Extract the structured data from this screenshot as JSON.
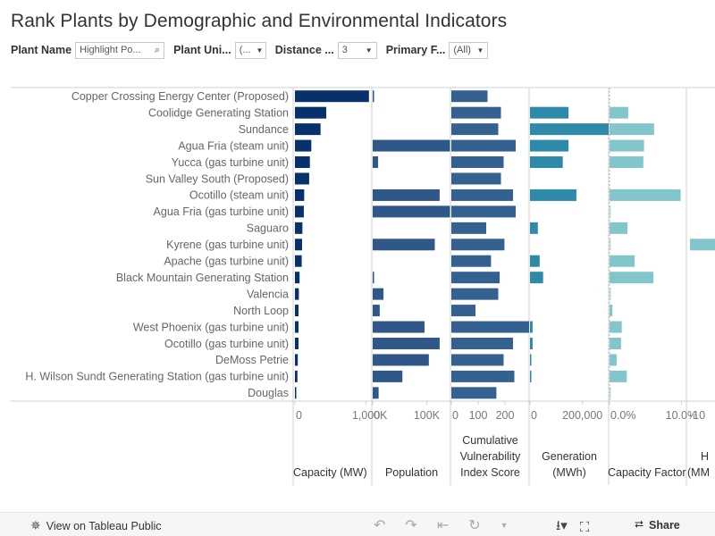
{
  "title": "Rank Plants by Demographic and Environmental Indicators",
  "filters": [
    {
      "label": "Plant Name",
      "value": "Highlight Po...",
      "kind": "search"
    },
    {
      "label": "Plant Uni...",
      "value": "(...",
      "kind": "select"
    },
    {
      "label": "Distance ...",
      "value": "3",
      "kind": "select"
    },
    {
      "label": "Primary F...",
      "value": "(All)",
      "kind": "select"
    }
  ],
  "colors": {
    "capacity": "#08306b",
    "population": "#2f5788",
    "cvi": "#34618f",
    "generation": "#2e8aa8",
    "capfactor": "#82c6cc",
    "capfactor_small": "#b9e0e2",
    "axis": "#d0d0d0",
    "text": "#666666"
  },
  "chart_data": {
    "type": "bar",
    "categories": [
      "Copper Crossing Energy Center (Proposed)",
      "Coolidge Generating Station",
      "Sundance",
      "Agua Fria (steam unit)",
      "Yucca (gas turbine unit)",
      "Sun Valley South (Proposed)",
      "Ocotillo (steam unit)",
      "Agua Fria (gas turbine unit)",
      "Saguaro",
      "Kyrene (gas turbine unit)",
      "Apache (gas turbine unit)",
      "Black Mountain Generating Station",
      "Valencia",
      "North Loop",
      "West Phoenix (gas turbine unit)",
      "Ocotillo (gas turbine unit)",
      "DeMoss Petrie",
      "H. Wilson Sundt Generating Station (gas turbine unit)",
      "Douglas"
    ],
    "panels": [
      {
        "key": "capacity",
        "name": "Capacity (MW)",
        "header": [
          "Capacity (MW)"
        ],
        "ticks": [
          0,
          1000
        ],
        "tick_labels": [
          "0",
          "1,000"
        ],
        "xlim": [
          0,
          1080
        ],
        "values": [
          1040,
          440,
          360,
          230,
          210,
          200,
          130,
          125,
          105,
          100,
          95,
          65,
          55,
          50,
          50,
          50,
          40,
          35,
          5
        ]
      },
      {
        "key": "population",
        "name": "Population",
        "header": [
          "Population"
        ],
        "ticks": [
          0,
          100000
        ],
        "tick_labels": [
          "0K",
          "100K"
        ],
        "xlim": [
          0,
          144000
        ],
        "values": [
          2500,
          null,
          null,
          143000,
          10000,
          null,
          124000,
          143000,
          null,
          115000,
          null,
          2000,
          20000,
          13000,
          96000,
          124000,
          104000,
          55000,
          11000
        ]
      },
      {
        "key": "cvi",
        "name": "Cumulative Vulnerability Index Score",
        "header": [
          "Cumulative",
          "Vulnerability",
          "Index Score"
        ],
        "ticks": [
          0,
          100,
          200
        ],
        "tick_labels": [
          "0",
          "100",
          "200"
        ],
        "xlim": [
          0,
          290
        ],
        "values": [
          135,
          185,
          175,
          240,
          195,
          185,
          230,
          240,
          130,
          198,
          148,
          180,
          175,
          90,
          290,
          230,
          195,
          235,
          168
        ]
      },
      {
        "key": "generation",
        "name": "Generation (MWh)",
        "header": [
          "Generation",
          "(MWh)"
        ],
        "ticks": [
          0,
          200000
        ],
        "tick_labels": [
          "0",
          "200,000"
        ],
        "xlim": [
          0,
          300000
        ],
        "values": [
          null,
          147000,
          300000,
          147000,
          125000,
          null,
          177000,
          null,
          30000,
          null,
          37000,
          50000,
          null,
          null,
          10000,
          10000,
          2000,
          5000,
          null
        ]
      },
      {
        "key": "capfactor",
        "name": "Capacity Factor",
        "header": [
          "Capacity Factor"
        ],
        "ticks": [
          0,
          0.1
        ],
        "tick_labels": [
          "0.0%",
          "10.0%"
        ],
        "xlim": [
          0,
          0.107
        ],
        "values": [
          null,
          0.026,
          0.062,
          0.048,
          0.047,
          null,
          0.099,
          0.001,
          0.025,
          0.001,
          0.035,
          0.061,
          0.002,
          0.004,
          0.017,
          0.016,
          0.01,
          0.024,
          0.001
        ]
      }
    ],
    "partial_panel": {
      "header": [
        "H",
        "(MM"
      ],
      "tick_label": "-10",
      "values": [
        null,
        null,
        null,
        null,
        null,
        null,
        null,
        null,
        null,
        1,
        null,
        null,
        null,
        null,
        null,
        null,
        null,
        null,
        null
      ]
    }
  },
  "footer": {
    "view_label": "View on Tableau Public",
    "share_label": "Share"
  }
}
